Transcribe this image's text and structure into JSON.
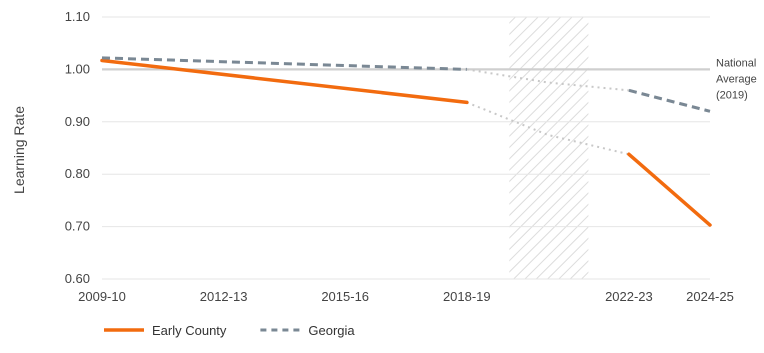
{
  "chart_data": {
    "type": "line",
    "title": "",
    "xlabel": "",
    "ylabel": "Learning Rate",
    "ylim": [
      0.6,
      1.1
    ],
    "yticks": [
      0.6,
      0.7,
      0.8,
      0.9,
      1.0,
      1.1
    ],
    "ytick_labels": [
      "0.60",
      "0.70",
      "0.80",
      "0.90",
      "1.00",
      "1.10"
    ],
    "xlim": [
      2009,
      2024
    ],
    "xticks": [
      {
        "x": 2009,
        "label": "2009-10"
      },
      {
        "x": 2012,
        "label": "2012-13"
      },
      {
        "x": 2015,
        "label": "2015-16"
      },
      {
        "x": 2018,
        "label": "2018-19"
      },
      {
        "x": 2022,
        "label": "2022-23"
      },
      {
        "x": 2024,
        "label": "2024-25"
      }
    ],
    "grid": "horizontal",
    "shaded_period": [
      2019,
      2021
    ],
    "reference_line": {
      "y": 1.0,
      "label_lines": [
        "National",
        "Average",
        "(2019)"
      ]
    },
    "series": [
      {
        "name": "Early County",
        "color": "#F26B0F",
        "style": "solid",
        "segments": [
          [
            [
              2009,
              1.017
            ],
            [
              2018,
              0.937
            ]
          ],
          [
            [
              2022,
              0.838
            ],
            [
              2024,
              0.703
            ]
          ]
        ],
        "gap_connector": [
          [
            2018,
            0.937
          ],
          [
            2020,
            0.875
          ],
          [
            2022,
            0.838
          ]
        ]
      },
      {
        "name": "Georgia",
        "color": "#7A8894",
        "style": "dashed",
        "segments": [
          [
            [
              2009,
              1.022
            ],
            [
              2018,
              1.0
            ]
          ],
          [
            [
              2022,
              0.96
            ],
            [
              2024,
              0.92
            ]
          ]
        ],
        "gap_connector": [
          [
            2018,
            1.0
          ],
          [
            2020,
            0.975
          ],
          [
            2022,
            0.96
          ]
        ]
      }
    ],
    "legend": {
      "placement": "bottom-left"
    }
  }
}
